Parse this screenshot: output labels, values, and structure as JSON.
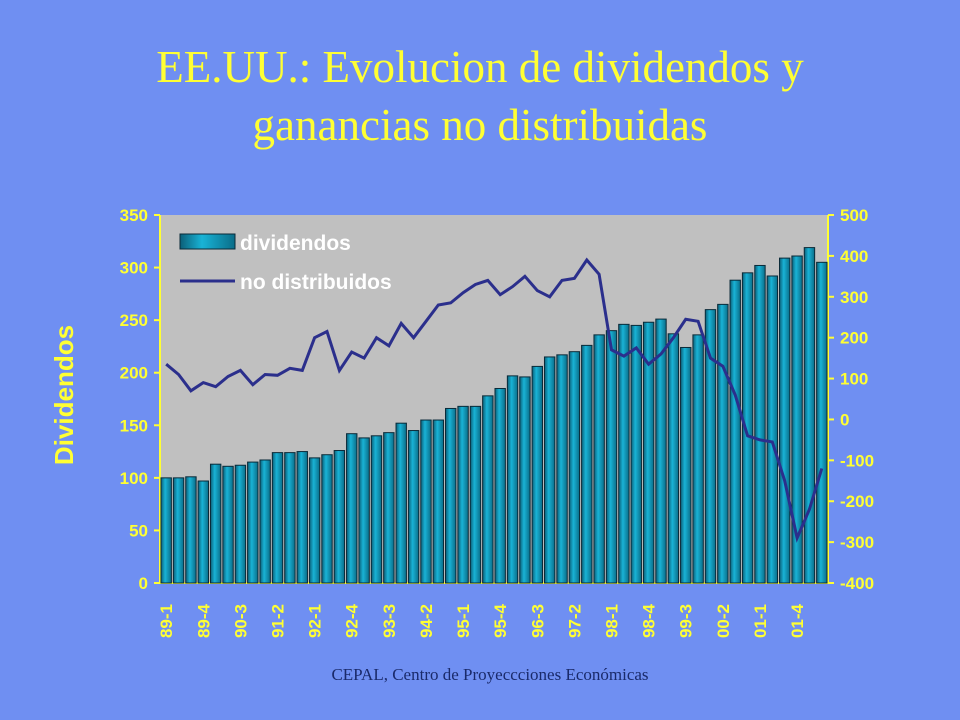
{
  "chart_data": {
    "type": "bar",
    "title": "EE.UU.: Evolucion de dividendos y ganancias no distribuidas",
    "ylabel": "Dividendos",
    "footer": "CEPAL, Centro de Proyeccciones Económicas",
    "categories": [
      "89-1",
      null,
      null,
      "89-4",
      null,
      null,
      "90-3",
      null,
      null,
      "91-2",
      null,
      null,
      "92-1",
      null,
      null,
      "92-4",
      null,
      null,
      "93-3",
      null,
      null,
      "94-2",
      null,
      null,
      "95-1",
      null,
      null,
      "95-4",
      null,
      null,
      "96-3",
      null,
      null,
      "97-2",
      null,
      null,
      "98-1",
      null,
      null,
      "98-4",
      null,
      null,
      "99-3",
      null,
      null,
      "00-2",
      null,
      null,
      "01-1",
      null,
      null,
      "01-4",
      null,
      null
    ],
    "series": [
      {
        "name": "dividendos",
        "type": "bar",
        "color": "#0a94b4",
        "values": [
          100,
          100,
          101,
          97,
          113,
          111,
          112,
          115,
          117,
          124,
          124,
          125,
          119,
          122,
          126,
          142,
          138,
          140,
          143,
          152,
          145,
          155,
          155,
          166,
          168,
          168,
          178,
          185,
          197,
          196,
          206,
          215,
          217,
          220,
          226,
          236,
          240,
          246,
          245,
          248,
          251,
          237,
          224,
          236,
          260,
          265,
          288,
          295,
          302,
          292,
          309,
          311,
          319,
          305
        ]
      },
      {
        "name": "no distribuidos",
        "type": "line",
        "axis": "y2",
        "color": "#2b2f8c",
        "values": [
          135,
          110,
          70,
          90,
          80,
          105,
          120,
          85,
          110,
          108,
          125,
          120,
          200,
          215,
          120,
          165,
          150,
          200,
          180,
          235,
          200,
          240,
          280,
          285,
          310,
          330,
          340,
          305,
          325,
          350,
          315,
          300,
          340,
          345,
          390,
          355,
          170,
          155,
          175,
          135,
          160,
          200,
          245,
          240,
          150,
          130,
          60,
          -40,
          -50,
          -55,
          -150,
          -290,
          -220,
          -120
        ]
      }
    ],
    "ylim": [
      0,
      350
    ],
    "yticks": [
      0,
      50,
      100,
      150,
      200,
      250,
      300,
      350
    ],
    "y2lim": [
      -400,
      500
    ],
    "y2ticks": [
      -400,
      -300,
      -200,
      -100,
      0,
      100,
      200,
      300,
      400,
      500
    ],
    "legend": "upper left"
  }
}
